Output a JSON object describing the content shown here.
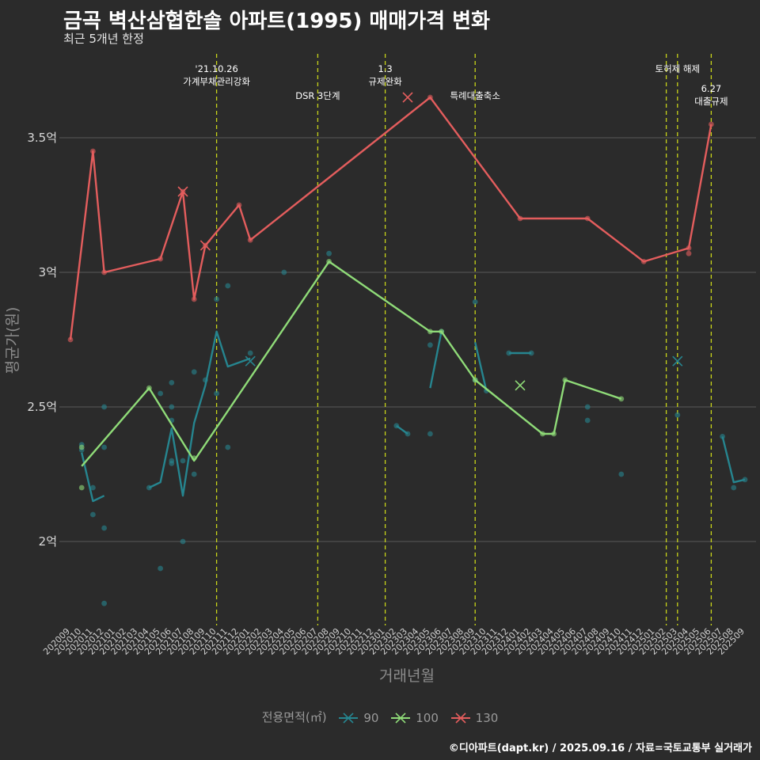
{
  "chart_data": {
    "type": "line",
    "title": "금곡 벽산삼협한솔 아파트(1995) 매매가격 변화",
    "subtitle": "최근 5개년 한정",
    "xlabel": "거래년월",
    "ylabel": "평균가(원)",
    "ylim": [
      1.65,
      3.8
    ],
    "yticks": [
      2,
      2.5,
      3,
      3.5
    ],
    "ytick_labels": [
      "2억",
      "2.5억",
      "3억",
      "3.5억"
    ],
    "grid": true,
    "legend_title": "전용면적(㎡)",
    "legend_position": "bottom",
    "categories": [
      "202009",
      "202010",
      "202011",
      "202012",
      "202101",
      "202102",
      "202103",
      "202104",
      "202105",
      "202106",
      "202107",
      "202108",
      "202109",
      "202110",
      "202111",
      "202112",
      "202201",
      "202202",
      "202203",
      "202204",
      "202205",
      "202206",
      "202207",
      "202208",
      "202209",
      "202210",
      "202211",
      "202212",
      "202301",
      "202302",
      "202303",
      "202304",
      "202305",
      "202306",
      "202307",
      "202308",
      "202309",
      "202310",
      "202311",
      "202312",
      "202401",
      "202402",
      "202403",
      "202404",
      "202405",
      "202406",
      "202407",
      "202408",
      "202409",
      "202410",
      "202411",
      "202412",
      "202501",
      "202502",
      "202503",
      "202504",
      "202505",
      "202506",
      "202507",
      "202508",
      "202509"
    ],
    "series": [
      {
        "name": "90",
        "color": "#26858f",
        "lines": [
          [
            [
              "202010",
              2.33
            ],
            [
              "202011",
              2.15
            ],
            [
              "202012",
              2.17
            ]
          ],
          [
            [
              "202104",
              2.2
            ],
            [
              "202105",
              2.22
            ],
            [
              "202106",
              2.42
            ],
            [
              "202107",
              2.17
            ],
            [
              "202108",
              2.44
            ],
            [
              "202109",
              2.58
            ],
            [
              "202110",
              2.78
            ],
            [
              "202111",
              2.65
            ],
            [
              "202201",
              2.68
            ]
          ],
          [
            [
              "202302",
              2.43
            ],
            [
              "202303",
              2.4
            ]
          ],
          [
            [
              "202305",
              2.57
            ],
            [
              "202306",
              2.78
            ]
          ],
          [
            [
              "202309",
              2.74
            ],
            [
              "202310",
              2.56
            ]
          ],
          [
            [
              "202312",
              2.7
            ],
            [
              "202402",
              2.7
            ]
          ],
          [
            [
              "202507",
              2.39
            ],
            [
              "202508",
              2.22
            ],
            [
              "202509",
              2.23
            ]
          ]
        ],
        "points": [
          [
            "202010",
            2.36
          ],
          [
            "202010",
            2.34
          ],
          [
            "202011",
            2.2
          ],
          [
            "202011",
            2.1
          ],
          [
            "202012",
            2.5
          ],
          [
            "202012",
            2.35
          ],
          [
            "202012",
            2.05
          ],
          [
            "202012",
            1.77
          ],
          [
            "202104",
            2.2
          ],
          [
            "202105",
            2.55
          ],
          [
            "202105",
            1.9
          ],
          [
            "202106",
            2.59
          ],
          [
            "202106",
            2.5
          ],
          [
            "202106",
            2.45
          ],
          [
            "202106",
            2.3
          ],
          [
            "202106",
            2.29
          ],
          [
            "202107",
            2.3
          ],
          [
            "202107",
            2.0
          ],
          [
            "202108",
            2.63
          ],
          [
            "202108",
            2.25
          ],
          [
            "202109",
            2.6
          ],
          [
            "202110",
            2.9
          ],
          [
            "202110",
            2.55
          ],
          [
            "202111",
            2.95
          ],
          [
            "202111",
            2.35
          ],
          [
            "202201",
            2.7
          ],
          [
            "202204",
            3.0
          ],
          [
            "202208",
            3.07
          ],
          [
            "202302",
            2.43
          ],
          [
            "202303",
            2.4
          ],
          [
            "202305",
            2.73
          ],
          [
            "202305",
            2.4
          ],
          [
            "202306",
            2.78
          ],
          [
            "202309",
            2.89
          ],
          [
            "202309",
            2.6
          ],
          [
            "202310",
            2.56
          ],
          [
            "202312",
            2.7
          ],
          [
            "202402",
            2.7
          ],
          [
            "202407",
            2.5
          ],
          [
            "202407",
            2.45
          ],
          [
            "202410",
            2.25
          ],
          [
            "202503",
            2.47
          ],
          [
            "202507",
            2.39
          ],
          [
            "202508",
            2.2
          ],
          [
            "202509",
            2.23
          ]
        ],
        "crosses": [
          [
            "202201",
            2.67
          ],
          [
            "202503",
            2.67
          ]
        ]
      },
      {
        "name": "100",
        "color": "#8fdb78",
        "lines": [
          [
            [
              "202010",
              2.28
            ],
            [
              "202104",
              2.57
            ],
            [
              "202108",
              2.3
            ],
            [
              "202208",
              3.04
            ],
            [
              "202305",
              2.78
            ],
            [
              "202306",
              2.78
            ],
            [
              "202309",
              2.6
            ],
            [
              "202403",
              2.4
            ],
            [
              "202404",
              2.4
            ],
            [
              "202405",
              2.6
            ],
            [
              "202410",
              2.53
            ]
          ]
        ],
        "points": [
          [
            "202010",
            2.35
          ],
          [
            "202010",
            2.2
          ],
          [
            "202104",
            2.57
          ],
          [
            "202108",
            2.31
          ],
          [
            "202208",
            3.04
          ],
          [
            "202305",
            2.78
          ],
          [
            "202306",
            2.78
          ],
          [
            "202309",
            2.6
          ],
          [
            "202403",
            2.4
          ],
          [
            "202404",
            2.4
          ],
          [
            "202405",
            2.6
          ],
          [
            "202410",
            2.53
          ]
        ],
        "crosses": [
          [
            "202401",
            2.58
          ]
        ]
      },
      {
        "name": "130",
        "color": "#e35d5d",
        "lines": [
          [
            [
              "202009",
              2.75
            ],
            [
              "202011",
              3.45
            ],
            [
              "202012",
              3.0
            ],
            [
              "202105",
              3.05
            ],
            [
              "202107",
              3.3
            ],
            [
              "202108",
              2.9
            ],
            [
              "202109",
              3.1
            ],
            [
              "202112",
              3.25
            ],
            [
              "202201",
              3.12
            ],
            [
              "202305",
              3.65
            ],
            [
              "202401",
              3.2
            ],
            [
              "202407",
              3.2
            ],
            [
              "202412",
              3.04
            ],
            [
              "202504",
              3.09
            ],
            [
              "202506",
              3.55
            ]
          ]
        ],
        "points": [
          [
            "202009",
            2.75
          ],
          [
            "202011",
            3.45
          ],
          [
            "202012",
            3.0
          ],
          [
            "202105",
            3.05
          ],
          [
            "202107",
            3.3
          ],
          [
            "202108",
            2.9
          ],
          [
            "202109",
            3.1
          ],
          [
            "202112",
            3.25
          ],
          [
            "202201",
            3.12
          ],
          [
            "202305",
            3.65
          ],
          [
            "202401",
            3.2
          ],
          [
            "202407",
            3.2
          ],
          [
            "202412",
            3.04
          ],
          [
            "202504",
            3.09
          ],
          [
            "202504",
            3.07
          ],
          [
            "202506",
            3.55
          ]
        ],
        "crosses": [
          [
            "202107",
            3.3
          ],
          [
            "202109",
            3.1
          ],
          [
            "202303",
            3.65
          ]
        ]
      }
    ],
    "vlines": [
      {
        "x": "202110",
        "labels": [
          "'21.10.26",
          "가계부채관리강화"
        ],
        "row": 0
      },
      {
        "x": "202207",
        "labels": [
          "DSR 3단계"
        ],
        "row": 1
      },
      {
        "x": "202301",
        "labels": [
          "1.3",
          "규제완화"
        ],
        "row": 0
      },
      {
        "x": "202309",
        "labels": [
          "특례대출축소"
        ],
        "row": 1
      },
      {
        "x": "202502",
        "labels": [],
        "row": 0
      },
      {
        "x": "202503",
        "labels": [
          "토허제 해제"
        ],
        "row": 0
      },
      {
        "x": "202506",
        "labels": [
          "6.27",
          "대출규제"
        ],
        "row": 2
      }
    ],
    "vline_color": "#c8d419",
    "caption": "©디아파트(dapt.kr) / 2025.09.16 / 자료=국토교통부 실거래가"
  }
}
